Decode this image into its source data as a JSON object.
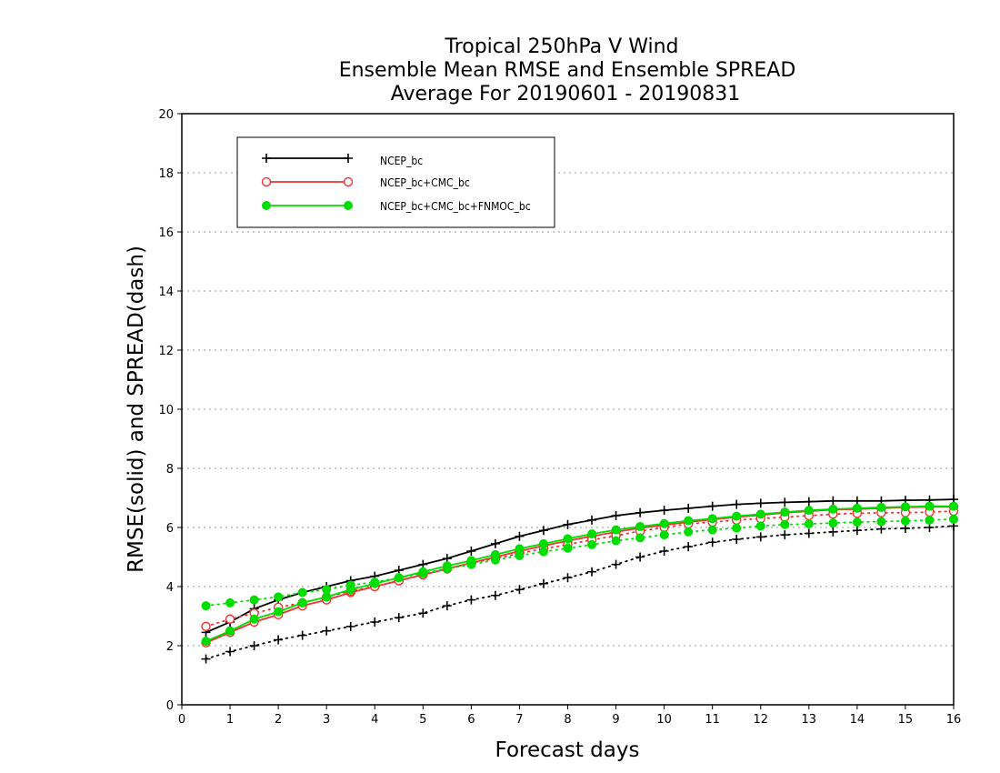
{
  "chart_data": {
    "type": "line",
    "title": [
      "Tropical 250hPa V Wind",
      "Ensemble Mean RMSE and Ensemble SPREAD",
      "Average For 20190601 - 20190831"
    ],
    "xlabel": "Forecast days",
    "ylabel": "RMSE(solid) and SPREAD(dash)",
    "xlim": [
      0,
      16
    ],
    "ylim": [
      0,
      20
    ],
    "xticks": [
      0,
      1,
      2,
      3,
      4,
      5,
      6,
      7,
      8,
      9,
      10,
      11,
      12,
      13,
      14,
      15,
      16
    ],
    "yticks": [
      0,
      2,
      4,
      6,
      8,
      10,
      12,
      14,
      16,
      18,
      20
    ],
    "grid": "dotted horizontal",
    "legend_position": "top-left",
    "x": [
      0.5,
      1,
      1.5,
      2,
      2.5,
      3,
      3.5,
      4,
      4.5,
      5,
      5.5,
      6,
      6.5,
      7,
      7.5,
      8,
      8.5,
      9,
      9.5,
      10,
      10.5,
      11,
      11.5,
      12,
      12.5,
      13,
      13.5,
      14,
      14.5,
      15,
      15.5,
      16
    ],
    "series": [
      {
        "name": "NCEP_bc",
        "color": "#000000",
        "marker": "plus",
        "rmse": [
          2.45,
          2.8,
          3.25,
          3.55,
          3.8,
          4.0,
          4.2,
          4.35,
          4.55,
          4.75,
          4.95,
          5.2,
          5.45,
          5.7,
          5.9,
          6.1,
          6.25,
          6.4,
          6.5,
          6.58,
          6.65,
          6.72,
          6.78,
          6.82,
          6.85,
          6.87,
          6.9,
          6.9,
          6.9,
          6.92,
          6.93,
          6.95
        ],
        "spread": [
          1.55,
          1.8,
          2.0,
          2.2,
          2.35,
          2.5,
          2.65,
          2.8,
          2.95,
          3.1,
          3.35,
          3.55,
          3.7,
          3.9,
          4.1,
          4.3,
          4.5,
          4.75,
          5.0,
          5.2,
          5.35,
          5.5,
          5.6,
          5.68,
          5.75,
          5.8,
          5.85,
          5.9,
          5.95,
          5.97,
          6.0,
          6.05
        ]
      },
      {
        "name": "NCEP_bc+CMC_bc",
        "color": "#ee3333",
        "marker": "open-circle",
        "rmse": [
          2.1,
          2.45,
          2.8,
          3.05,
          3.35,
          3.55,
          3.8,
          4.0,
          4.2,
          4.4,
          4.6,
          4.8,
          5.0,
          5.2,
          5.38,
          5.55,
          5.7,
          5.85,
          5.98,
          6.08,
          6.18,
          6.27,
          6.35,
          6.42,
          6.5,
          6.55,
          6.6,
          6.62,
          6.65,
          6.68,
          6.7,
          6.7
        ],
        "spread": [
          2.65,
          2.9,
          3.1,
          3.3,
          3.45,
          3.65,
          3.85,
          4.0,
          4.2,
          4.4,
          4.6,
          4.8,
          4.95,
          5.12,
          5.28,
          5.42,
          5.58,
          5.72,
          5.88,
          6.0,
          6.12,
          6.18,
          6.25,
          6.3,
          6.35,
          6.4,
          6.45,
          6.48,
          6.5,
          6.5,
          6.52,
          6.55
        ]
      },
      {
        "name": "NCEP_bc+CMC_bc+FNMOC_bc",
        "color": "#00dd00",
        "marker": "filled-circle",
        "rmse": [
          2.15,
          2.5,
          2.9,
          3.15,
          3.45,
          3.65,
          3.9,
          4.1,
          4.3,
          4.5,
          4.7,
          4.88,
          5.08,
          5.28,
          5.45,
          5.62,
          5.78,
          5.92,
          6.03,
          6.13,
          6.23,
          6.3,
          6.38,
          6.45,
          6.52,
          6.58,
          6.62,
          6.65,
          6.68,
          6.7,
          6.72,
          6.72
        ],
        "spread": [
          3.35,
          3.45,
          3.55,
          3.65,
          3.8,
          3.9,
          4.05,
          4.15,
          4.3,
          4.45,
          4.6,
          4.75,
          4.9,
          5.05,
          5.18,
          5.3,
          5.42,
          5.55,
          5.65,
          5.75,
          5.85,
          5.92,
          5.98,
          6.05,
          6.1,
          6.12,
          6.15,
          6.18,
          6.2,
          6.22,
          6.25,
          6.28
        ]
      }
    ]
  }
}
